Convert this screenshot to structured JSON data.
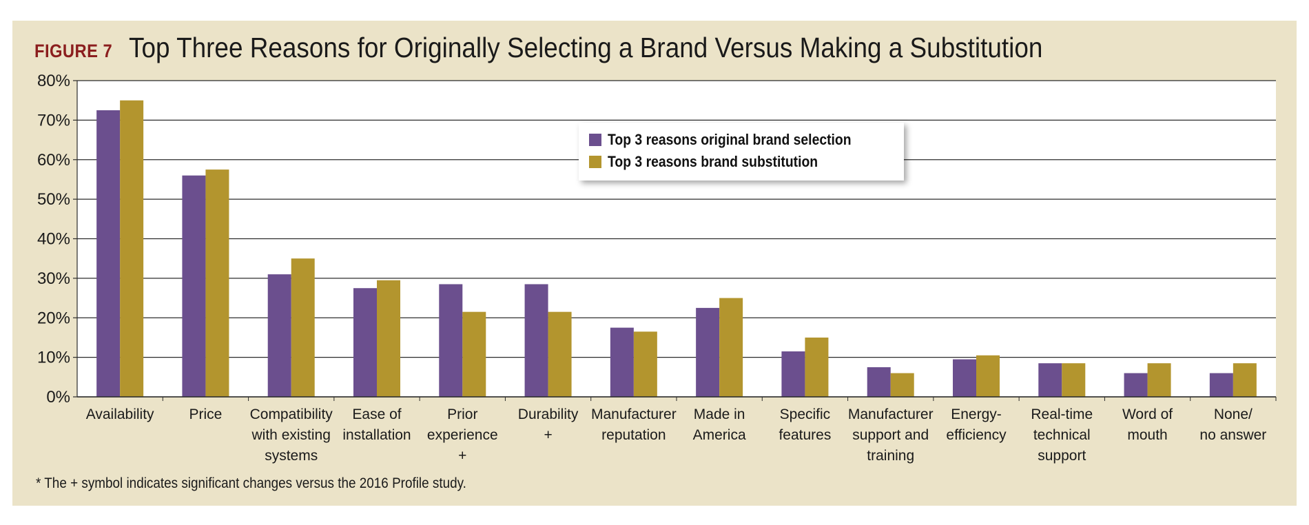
{
  "figure_label": "FIGURE 7",
  "chart_data": {
    "type": "bar",
    "title": "Top Three Reasons for Originally Selecting a Brand Versus Making a Substitution",
    "xlabel": "",
    "ylabel": "",
    "ylim": [
      0,
      80
    ],
    "yticks": [
      "0%",
      "10%",
      "20%",
      "30%",
      "40%",
      "50%",
      "60%",
      "70%",
      "80%"
    ],
    "grid": true,
    "legend_position": "top-center",
    "categories": [
      [
        "Availability"
      ],
      [
        "Price"
      ],
      [
        "Compatibility",
        "with existing",
        "systems"
      ],
      [
        "Ease of",
        "installation"
      ],
      [
        "Prior",
        "experience",
        "+"
      ],
      [
        "Durability",
        "+"
      ],
      [
        "Manufacturer",
        "reputation"
      ],
      [
        "Made in",
        "America"
      ],
      [
        "Specific",
        "features"
      ],
      [
        "Manufacturer",
        "support and",
        "training"
      ],
      [
        "Energy-",
        "efficiency"
      ],
      [
        "Real-time",
        "technical",
        "support"
      ],
      [
        "Word of",
        "mouth"
      ],
      [
        "None/",
        "no answer"
      ]
    ],
    "series": [
      {
        "name": "Top 3 reasons original brand selection",
        "color": "#6b4f8e",
        "values": [
          72.5,
          56,
          31,
          27.5,
          28.5,
          28.5,
          17.5,
          22.5,
          11.5,
          7.5,
          9.5,
          8.5,
          6,
          6
        ]
      },
      {
        "name": "Top 3 reasons brand substitution",
        "color": "#b3952e",
        "values": [
          75,
          57.5,
          35,
          29.5,
          21.5,
          21.5,
          16.5,
          25,
          15,
          6,
          10.5,
          8.5,
          8.5,
          8.5
        ]
      }
    ],
    "footnote": "* The + symbol indicates significant changes versus the 2016 Profile study."
  }
}
